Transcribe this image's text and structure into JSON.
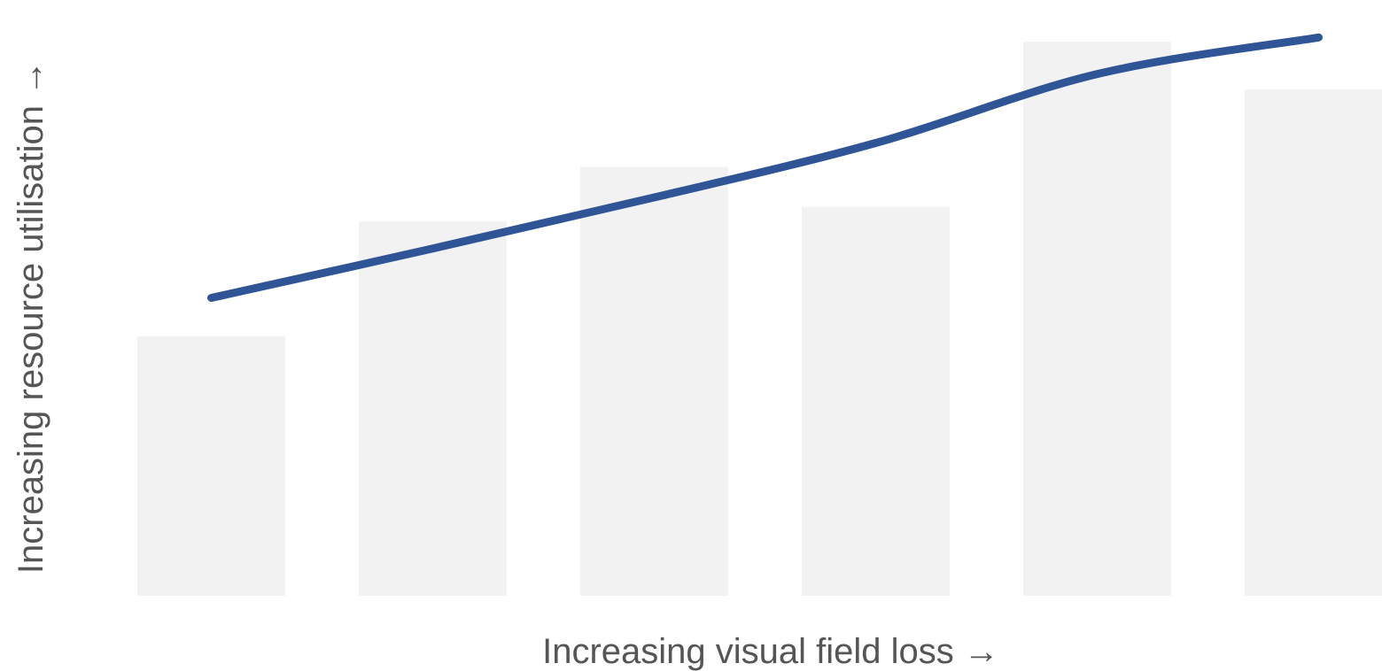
{
  "chart_data": {
    "type": "bar",
    "categories": [
      "",
      "",
      "",
      "",
      "",
      ""
    ],
    "values": [
      305,
      440,
      504,
      457,
      651,
      595
    ],
    "trend_line": {
      "type": "line",
      "values": [
        350,
        408,
        468,
        532,
        613,
        656
      ]
    },
    "xlabel": "Increasing visual field loss →",
    "ylabel": "Increasing resource utilisation →",
    "ylim": [
      0,
      700
    ],
    "grid": false,
    "legend": "none",
    "colors": {
      "bar": "#f2f2f2",
      "line": "#2f5597",
      "axis_text": "#555555"
    }
  }
}
